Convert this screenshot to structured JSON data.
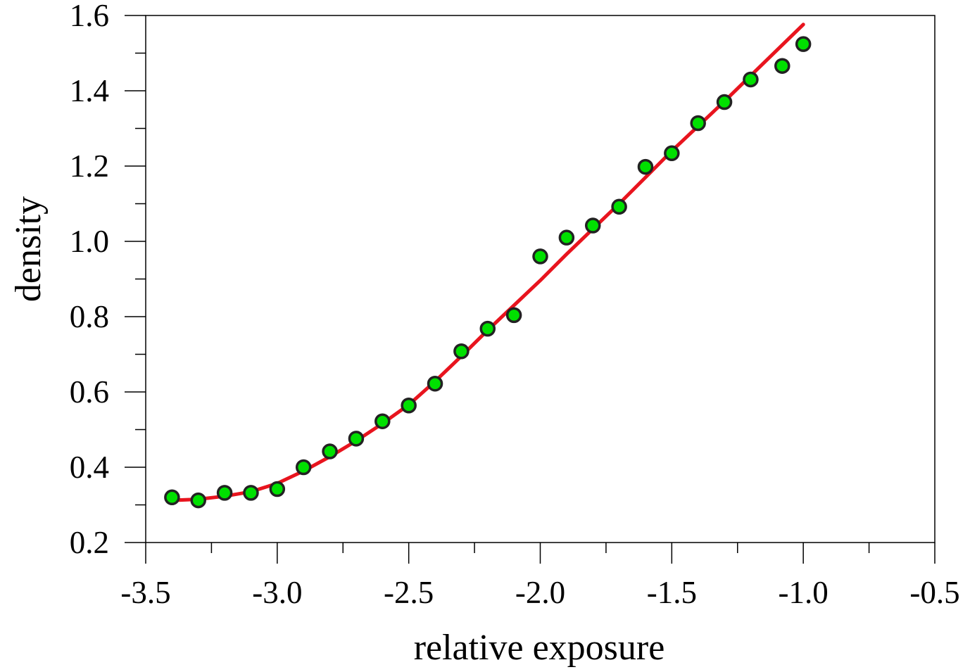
{
  "chart_data": {
    "type": "scatter",
    "xlabel": "relative exposure",
    "ylabel": "density",
    "xlim": [
      -3.5,
      -0.5
    ],
    "ylim": [
      0.2,
      1.6
    ],
    "x_major_ticks": [
      -3.5,
      -3.0,
      -2.5,
      -2.0,
      -1.5,
      -1.0,
      -0.5
    ],
    "x_tick_labels": [
      "-3.5",
      "-3.0",
      "-2.5",
      "-2.0",
      "-1.5",
      "-1.0",
      "-0.5"
    ],
    "x_minor_ticks": [
      -3.25,
      -2.75,
      -2.25,
      -1.75,
      -1.25,
      -0.75
    ],
    "y_major_ticks": [
      0.2,
      0.4,
      0.6,
      0.8,
      1.0,
      1.2,
      1.4,
      1.6
    ],
    "y_tick_labels": [
      "0.2",
      "0.4",
      "0.6",
      "0.8",
      "1.0",
      "1.2",
      "1.4",
      "1.6"
    ],
    "y_minor_ticks": [
      0.3,
      0.5,
      0.7,
      0.9,
      1.1,
      1.3,
      1.5
    ],
    "grid": false,
    "colors": {
      "marker_fill": "#00e000",
      "marker_edge": "#222222",
      "fit_line": "#e8141e"
    },
    "series": [
      {
        "kind": "points",
        "points": [
          {
            "x": -3.4,
            "y": 0.32
          },
          {
            "x": -3.3,
            "y": 0.312
          },
          {
            "x": -3.2,
            "y": 0.332
          },
          {
            "x": -3.1,
            "y": 0.332
          },
          {
            "x": -3.0,
            "y": 0.342
          },
          {
            "x": -2.9,
            "y": 0.4
          },
          {
            "x": -2.8,
            "y": 0.442
          },
          {
            "x": -2.7,
            "y": 0.476
          },
          {
            "x": -2.6,
            "y": 0.522
          },
          {
            "x": -2.5,
            "y": 0.564
          },
          {
            "x": -2.4,
            "y": 0.622
          },
          {
            "x": -2.3,
            "y": 0.708
          },
          {
            "x": -2.2,
            "y": 0.768
          },
          {
            "x": -2.1,
            "y": 0.804
          },
          {
            "x": -2.0,
            "y": 0.96
          },
          {
            "x": -1.9,
            "y": 1.01
          },
          {
            "x": -1.8,
            "y": 1.042
          },
          {
            "x": -1.7,
            "y": 1.092
          },
          {
            "x": -1.6,
            "y": 1.198
          },
          {
            "x": -1.5,
            "y": 1.234
          },
          {
            "x": -1.4,
            "y": 1.314
          },
          {
            "x": -1.3,
            "y": 1.37
          },
          {
            "x": -1.2,
            "y": 1.43
          },
          {
            "x": -1.08,
            "y": 1.466
          },
          {
            "x": -1.0,
            "y": 1.524
          }
        ]
      },
      {
        "kind": "fit-line",
        "points": [
          {
            "x": -3.4,
            "y": 0.312
          },
          {
            "x": -3.3,
            "y": 0.315
          },
          {
            "x": -3.2,
            "y": 0.323
          },
          {
            "x": -3.1,
            "y": 0.335
          },
          {
            "x": -3.0,
            "y": 0.357
          },
          {
            "x": -2.9,
            "y": 0.39
          },
          {
            "x": -2.8,
            "y": 0.428
          },
          {
            "x": -2.7,
            "y": 0.47
          },
          {
            "x": -2.6,
            "y": 0.516
          },
          {
            "x": -2.5,
            "y": 0.566
          },
          {
            "x": -2.4,
            "y": 0.628
          },
          {
            "x": -2.3,
            "y": 0.695
          },
          {
            "x": -2.2,
            "y": 0.764
          },
          {
            "x": -2.1,
            "y": 0.83
          },
          {
            "x": -2.0,
            "y": 0.896
          },
          {
            "x": -1.9,
            "y": 0.966
          },
          {
            "x": -1.8,
            "y": 1.033
          },
          {
            "x": -1.7,
            "y": 1.1
          },
          {
            "x": -1.6,
            "y": 1.17
          },
          {
            "x": -1.5,
            "y": 1.24
          },
          {
            "x": -1.4,
            "y": 1.306
          },
          {
            "x": -1.3,
            "y": 1.372
          },
          {
            "x": -1.2,
            "y": 1.44
          },
          {
            "x": -1.1,
            "y": 1.508
          },
          {
            "x": -1.0,
            "y": 1.576
          }
        ]
      }
    ]
  }
}
